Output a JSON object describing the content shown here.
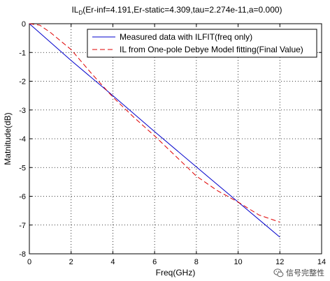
{
  "chart_data": {
    "type": "line",
    "title_main": "IL",
    "title_sub": "D",
    "title_rest": "(Er-inf=4.191,Er-static=4.309,tau=2.274e-11,a=0.000)",
    "xlabel": "Freq(GHz)",
    "ylabel": "Matnitude(dB)",
    "xlim": [
      0,
      14
    ],
    "ylim": [
      -8,
      0
    ],
    "xticks": [
      "0",
      "2",
      "4",
      "6",
      "8",
      "10",
      "12",
      "14"
    ],
    "yticks": [
      "0",
      "-1",
      "-2",
      "-3",
      "-4",
      "-5",
      "-6",
      "-7",
      "-8"
    ],
    "grid": true,
    "legend_position": "top-right",
    "series": [
      {
        "name": "Measured data with ILFIT(freq only)",
        "color": "#0000cc",
        "style": "solid",
        "x": [
          0,
          2,
          4,
          6,
          8,
          10,
          12
        ],
        "y": [
          0,
          -1.28,
          -2.5,
          -3.75,
          -4.98,
          -6.2,
          -7.42
        ]
      },
      {
        "name": "IL from One-pole Debye Model fitting(Final Value)",
        "color": "#e00000",
        "style": "dashed",
        "x": [
          0,
          0.5,
          1,
          1.5,
          2,
          3,
          4,
          5,
          6,
          7,
          8,
          9,
          10,
          11,
          12
        ],
        "y": [
          0,
          -0.05,
          -0.3,
          -0.6,
          -0.9,
          -1.75,
          -2.55,
          -3.25,
          -3.9,
          -4.6,
          -5.3,
          -5.8,
          -6.2,
          -6.65,
          -6.9
        ]
      }
    ]
  },
  "watermark": {
    "text": "信号完整性",
    "icon": "wechat-icon"
  }
}
